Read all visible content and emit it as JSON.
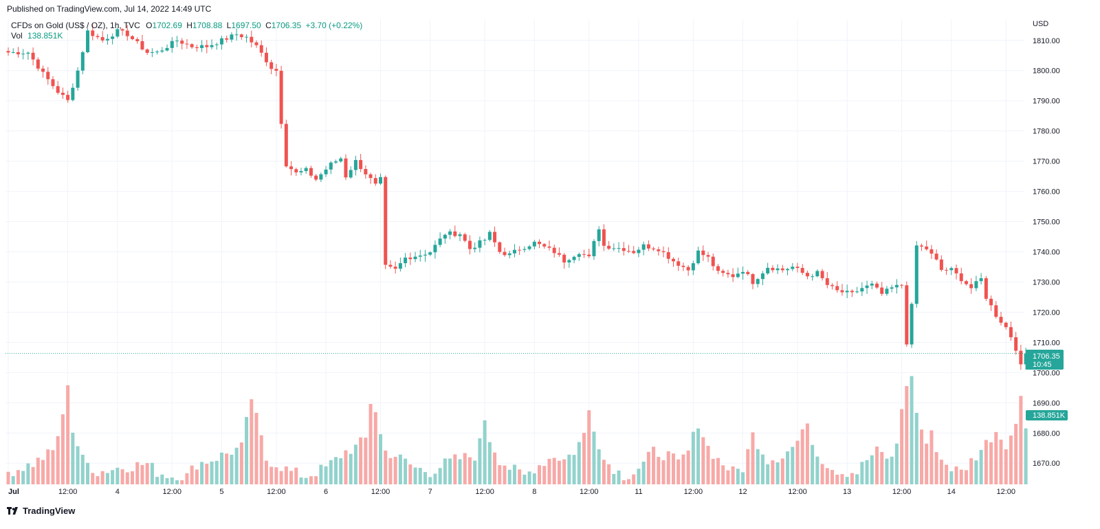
{
  "header": {
    "published": "Published on TradingView.com, Jul 14, 2022 14:49 UTC"
  },
  "legend": {
    "symbol": "CFDs on Gold (US$ / OZ), 1h, TVC",
    "o_label": "O",
    "o": "1702.69",
    "h_label": "H",
    "h": "1708.88",
    "l_label": "L",
    "l": "1697.50",
    "c_label": "C",
    "c": "1706.35",
    "change": "+3.70 (+0.22%)",
    "vol_label": "Vol",
    "vol": "138.851K"
  },
  "price_tag": {
    "price": "1706.35",
    "countdown": "10:45"
  },
  "volume_tag": "138.851K",
  "footer": {
    "brand": "TradingView"
  },
  "colors": {
    "up": "#26a69a",
    "down": "#ef5350",
    "up_vol": "#92d2cc",
    "down_vol": "#f7a9a7",
    "grid": "#f0f3fa",
    "text": "#131722"
  },
  "chart_data": {
    "type": "candlestick",
    "currency": "USD",
    "ylim": [
      1663,
      1817
    ],
    "y_ticks": [
      "1810.00",
      "1800.00",
      "1790.00",
      "1780.00",
      "1770.00",
      "1760.00",
      "1750.00",
      "1740.00",
      "1730.00",
      "1720.00",
      "1710.00",
      "1700.00",
      "1690.00",
      "1680.00",
      "1670.00"
    ],
    "x_ticks": [
      {
        "label": "Jul",
        "bar": 0
      },
      {
        "label": "12:00",
        "bar": 12
      },
      {
        "label": "4",
        "bar": 22
      },
      {
        "label": "12:00",
        "bar": 33
      },
      {
        "label": "5",
        "bar": 43
      },
      {
        "label": "12:00",
        "bar": 54
      },
      {
        "label": "6",
        "bar": 64
      },
      {
        "label": "12:00",
        "bar": 75
      },
      {
        "label": "7",
        "bar": 85
      },
      {
        "label": "12:00",
        "bar": 96
      },
      {
        "label": "8",
        "bar": 106
      },
      {
        "label": "12:00",
        "bar": 117
      },
      {
        "label": "11",
        "bar": 127
      },
      {
        "label": "12:00",
        "bar": 138
      },
      {
        "label": "12",
        "bar": 148
      },
      {
        "label": "12:00",
        "bar": 159
      },
      {
        "label": "13",
        "bar": 169
      },
      {
        "label": "12:00",
        "bar": 180
      },
      {
        "label": "14",
        "bar": 190
      },
      {
        "label": "12:00",
        "bar": 201
      }
    ],
    "last_price": 1706.35,
    "close_anchors": [
      [
        0,
        1806
      ],
      [
        4,
        1806
      ],
      [
        7,
        1799
      ],
      [
        10,
        1793
      ],
      [
        12,
        1790
      ],
      [
        14,
        1800
      ],
      [
        16,
        1813
      ],
      [
        19,
        1810
      ],
      [
        22,
        1813
      ],
      [
        24,
        1812
      ],
      [
        28,
        1806
      ],
      [
        30,
        1806
      ],
      [
        34,
        1810
      ],
      [
        37,
        1808
      ],
      [
        40,
        1808
      ],
      [
        43,
        1810
      ],
      [
        46,
        1812
      ],
      [
        48,
        1811
      ],
      [
        50,
        1808
      ],
      [
        53,
        1801
      ],
      [
        54,
        1800
      ],
      [
        55,
        1783
      ],
      [
        56,
        1769
      ],
      [
        58,
        1766
      ],
      [
        60,
        1767
      ],
      [
        62,
        1764
      ],
      [
        65,
        1769
      ],
      [
        67,
        1771
      ],
      [
        68,
        1765
      ],
      [
        70,
        1770
      ],
      [
        74,
        1762
      ],
      [
        75,
        1764
      ],
      [
        76,
        1735
      ],
      [
        78,
        1734
      ],
      [
        80,
        1738
      ],
      [
        83,
        1739
      ],
      [
        85,
        1740
      ],
      [
        88,
        1746
      ],
      [
        91,
        1746
      ],
      [
        93,
        1741
      ],
      [
        96,
        1744
      ],
      [
        97,
        1746
      ],
      [
        99,
        1740
      ],
      [
        101,
        1739
      ],
      [
        103,
        1741
      ],
      [
        106,
        1743
      ],
      [
        110,
        1740
      ],
      [
        112,
        1737
      ],
      [
        115,
        1740
      ],
      [
        117,
        1738
      ],
      [
        119,
        1748
      ],
      [
        120,
        1742
      ],
      [
        124,
        1741
      ],
      [
        126,
        1740
      ],
      [
        128,
        1742
      ],
      [
        131,
        1741
      ],
      [
        134,
        1737
      ],
      [
        137,
        1734
      ],
      [
        139,
        1740
      ],
      [
        141,
        1738
      ],
      [
        143,
        1733
      ],
      [
        146,
        1732
      ],
      [
        148,
        1734
      ],
      [
        150,
        1730
      ],
      [
        153,
        1735
      ],
      [
        156,
        1734
      ],
      [
        158,
        1735
      ],
      [
        161,
        1732
      ],
      [
        163,
        1733
      ],
      [
        165,
        1729
      ],
      [
        167,
        1727
      ],
      [
        170,
        1726
      ],
      [
        172,
        1728
      ],
      [
        174,
        1729
      ],
      [
        176,
        1726
      ],
      [
        178,
        1728
      ],
      [
        180,
        1729
      ],
      [
        181,
        1710
      ],
      [
        182,
        1722
      ],
      [
        183,
        1742
      ],
      [
        185,
        1741
      ],
      [
        187,
        1737
      ],
      [
        188,
        1734
      ],
      [
        190,
        1734
      ],
      [
        192,
        1731
      ],
      [
        194,
        1728
      ],
      [
        196,
        1731
      ],
      [
        197,
        1725
      ],
      [
        199,
        1719
      ],
      [
        201,
        1715
      ],
      [
        202,
        1712
      ],
      [
        203,
        1708
      ],
      [
        204,
        1702
      ],
      [
        205,
        1706.35
      ]
    ],
    "volume_anchors": [
      [
        0,
        3
      ],
      [
        5,
        5
      ],
      [
        9,
        8
      ],
      [
        11,
        16
      ],
      [
        12,
        25
      ],
      [
        13,
        13
      ],
      [
        15,
        6
      ],
      [
        18,
        3
      ],
      [
        22,
        4
      ],
      [
        28,
        5
      ],
      [
        30,
        3
      ],
      [
        33,
        2
      ],
      [
        36,
        2
      ],
      [
        38,
        5
      ],
      [
        41,
        6
      ],
      [
        43,
        7
      ],
      [
        47,
        9
      ],
      [
        48,
        15
      ],
      [
        49,
        21
      ],
      [
        50,
        16
      ],
      [
        52,
        6
      ],
      [
        54,
        5
      ],
      [
        57,
        3
      ],
      [
        60,
        2
      ],
      [
        64,
        4
      ],
      [
        68,
        8
      ],
      [
        70,
        9
      ],
      [
        72,
        11
      ],
      [
        73,
        20
      ],
      [
        74,
        18
      ],
      [
        75,
        12
      ],
      [
        76,
        8
      ],
      [
        78,
        7
      ],
      [
        82,
        4
      ],
      [
        85,
        3
      ],
      [
        88,
        5
      ],
      [
        90,
        6
      ],
      [
        94,
        7
      ],
      [
        95,
        10
      ],
      [
        96,
        16
      ],
      [
        97,
        11
      ],
      [
        99,
        6
      ],
      [
        101,
        4
      ],
      [
        104,
        2
      ],
      [
        106,
        4
      ],
      [
        110,
        7
      ],
      [
        112,
        6
      ],
      [
        114,
        8
      ],
      [
        116,
        12
      ],
      [
        117,
        18
      ],
      [
        118,
        14
      ],
      [
        120,
        6
      ],
      [
        122,
        4
      ],
      [
        124,
        2
      ],
      [
        126,
        3
      ],
      [
        128,
        5
      ],
      [
        130,
        8
      ],
      [
        133,
        7
      ],
      [
        135,
        5
      ],
      [
        137,
        8
      ],
      [
        139,
        15
      ],
      [
        141,
        9
      ],
      [
        143,
        6
      ],
      [
        146,
        3
      ],
      [
        148,
        4
      ],
      [
        150,
        12
      ],
      [
        153,
        6
      ],
      [
        156,
        7
      ],
      [
        158,
        9
      ],
      [
        160,
        12
      ],
      [
        161,
        16
      ],
      [
        162,
        10
      ],
      [
        164,
        6
      ],
      [
        166,
        4
      ],
      [
        168,
        3
      ],
      [
        171,
        3
      ],
      [
        173,
        6
      ],
      [
        175,
        8
      ],
      [
        178,
        6
      ],
      [
        179,
        10
      ],
      [
        180,
        19
      ],
      [
        181,
        23
      ],
      [
        182,
        27
      ],
      [
        183,
        17
      ],
      [
        185,
        10
      ],
      [
        186,
        12
      ],
      [
        188,
        6
      ],
      [
        190,
        4
      ],
      [
        192,
        3
      ],
      [
        195,
        7
      ],
      [
        197,
        10
      ],
      [
        199,
        13
      ],
      [
        201,
        10
      ],
      [
        203,
        14
      ],
      [
        204,
        22
      ],
      [
        205,
        15
      ]
    ]
  }
}
